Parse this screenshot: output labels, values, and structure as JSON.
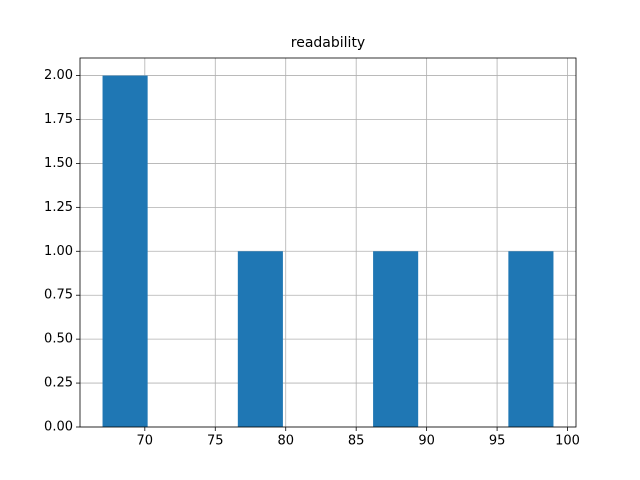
{
  "chart_data": {
    "type": "histogram",
    "title": "readability",
    "bins": [
      67,
      70.2,
      73.4,
      76.6,
      79.8,
      83,
      86.2,
      89.4,
      92.6,
      95.8,
      99
    ],
    "values": [
      2,
      0,
      0,
      1,
      0,
      0,
      1,
      0,
      0,
      1
    ],
    "color": "#1f77b4",
    "xlim": [
      65.4,
      100.6
    ],
    "xticks": [
      70,
      75,
      80,
      85,
      90,
      95,
      100
    ],
    "ylim": [
      0,
      2.1
    ],
    "yticks": [
      {
        "value": 0,
        "label": "0.00"
      },
      {
        "value": 0.25,
        "label": "0.25"
      },
      {
        "value": 0.5,
        "label": "0.50"
      },
      {
        "value": 0.75,
        "label": "0.75"
      },
      {
        "value": 1,
        "label": "1.00"
      },
      {
        "value": 1.25,
        "label": "1.25"
      },
      {
        "value": 1.5,
        "label": "1.50"
      },
      {
        "value": 1.75,
        "label": "1.75"
      },
      {
        "value": 2,
        "label": "2.00"
      }
    ],
    "grid": true
  }
}
